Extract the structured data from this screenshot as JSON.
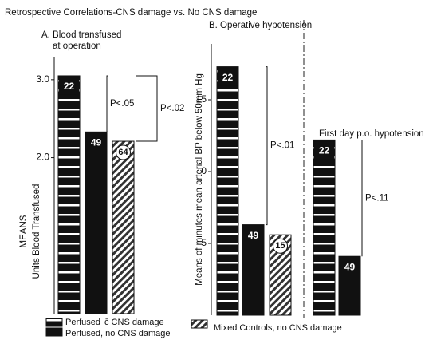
{
  "title": "Retrospective Correlations-CNS damage vs. No CNS damage",
  "legend": [
    {
      "name": "Perfused",
      "style": "stripes"
    },
    {
      "name": "c̄ CNS damage",
      "style": "stripes"
    },
    {
      "name": "Perfused, no CNS damage",
      "style": "solid"
    },
    {
      "name": "Mixed Controls, no CNS damage",
      "style": "hatch"
    }
  ],
  "chart_data": [
    {
      "type": "bar",
      "title": "A. Blood transfused",
      "subtitle": "at operation",
      "y_label": [
        "MEANS",
        "Units Blood Transfused"
      ],
      "values": [
        3.05,
        2.33,
        2.21
      ],
      "bar_labels": [
        "22",
        "49",
        "64"
      ],
      "bar_styles": [
        "stripes",
        "solid",
        "hatch"
      ],
      "ylim": [
        0,
        3.5
      ],
      "yticks": [
        {
          "value": 2,
          "label": "2.0"
        },
        {
          "value": 3,
          "label": "3.0"
        }
      ],
      "annotations": [
        "P<.05",
        "P<.02"
      ]
    },
    {
      "type": "bar",
      "title": "B. Operative hypotension",
      "subtitle": "First day p.o. hypotension",
      "y_label": [
        "Means of minutes mean arterial BP below 50mm Hg"
      ],
      "values": [
        17.3,
        6.3,
        5.6,
        12.2,
        4.1
      ],
      "bar_labels": [
        "22",
        "49",
        "15",
        "22",
        "49"
      ],
      "bar_styles": [
        "stripes",
        "solid",
        "hatch",
        "stripes",
        "solid"
      ],
      "ylim": [
        0,
        20
      ],
      "yticks": [
        5,
        {
          "value": 10,
          "label": "0"
        },
        15
      ],
      "annotations": [
        "P<.01",
        "P<.11"
      ]
    }
  ]
}
